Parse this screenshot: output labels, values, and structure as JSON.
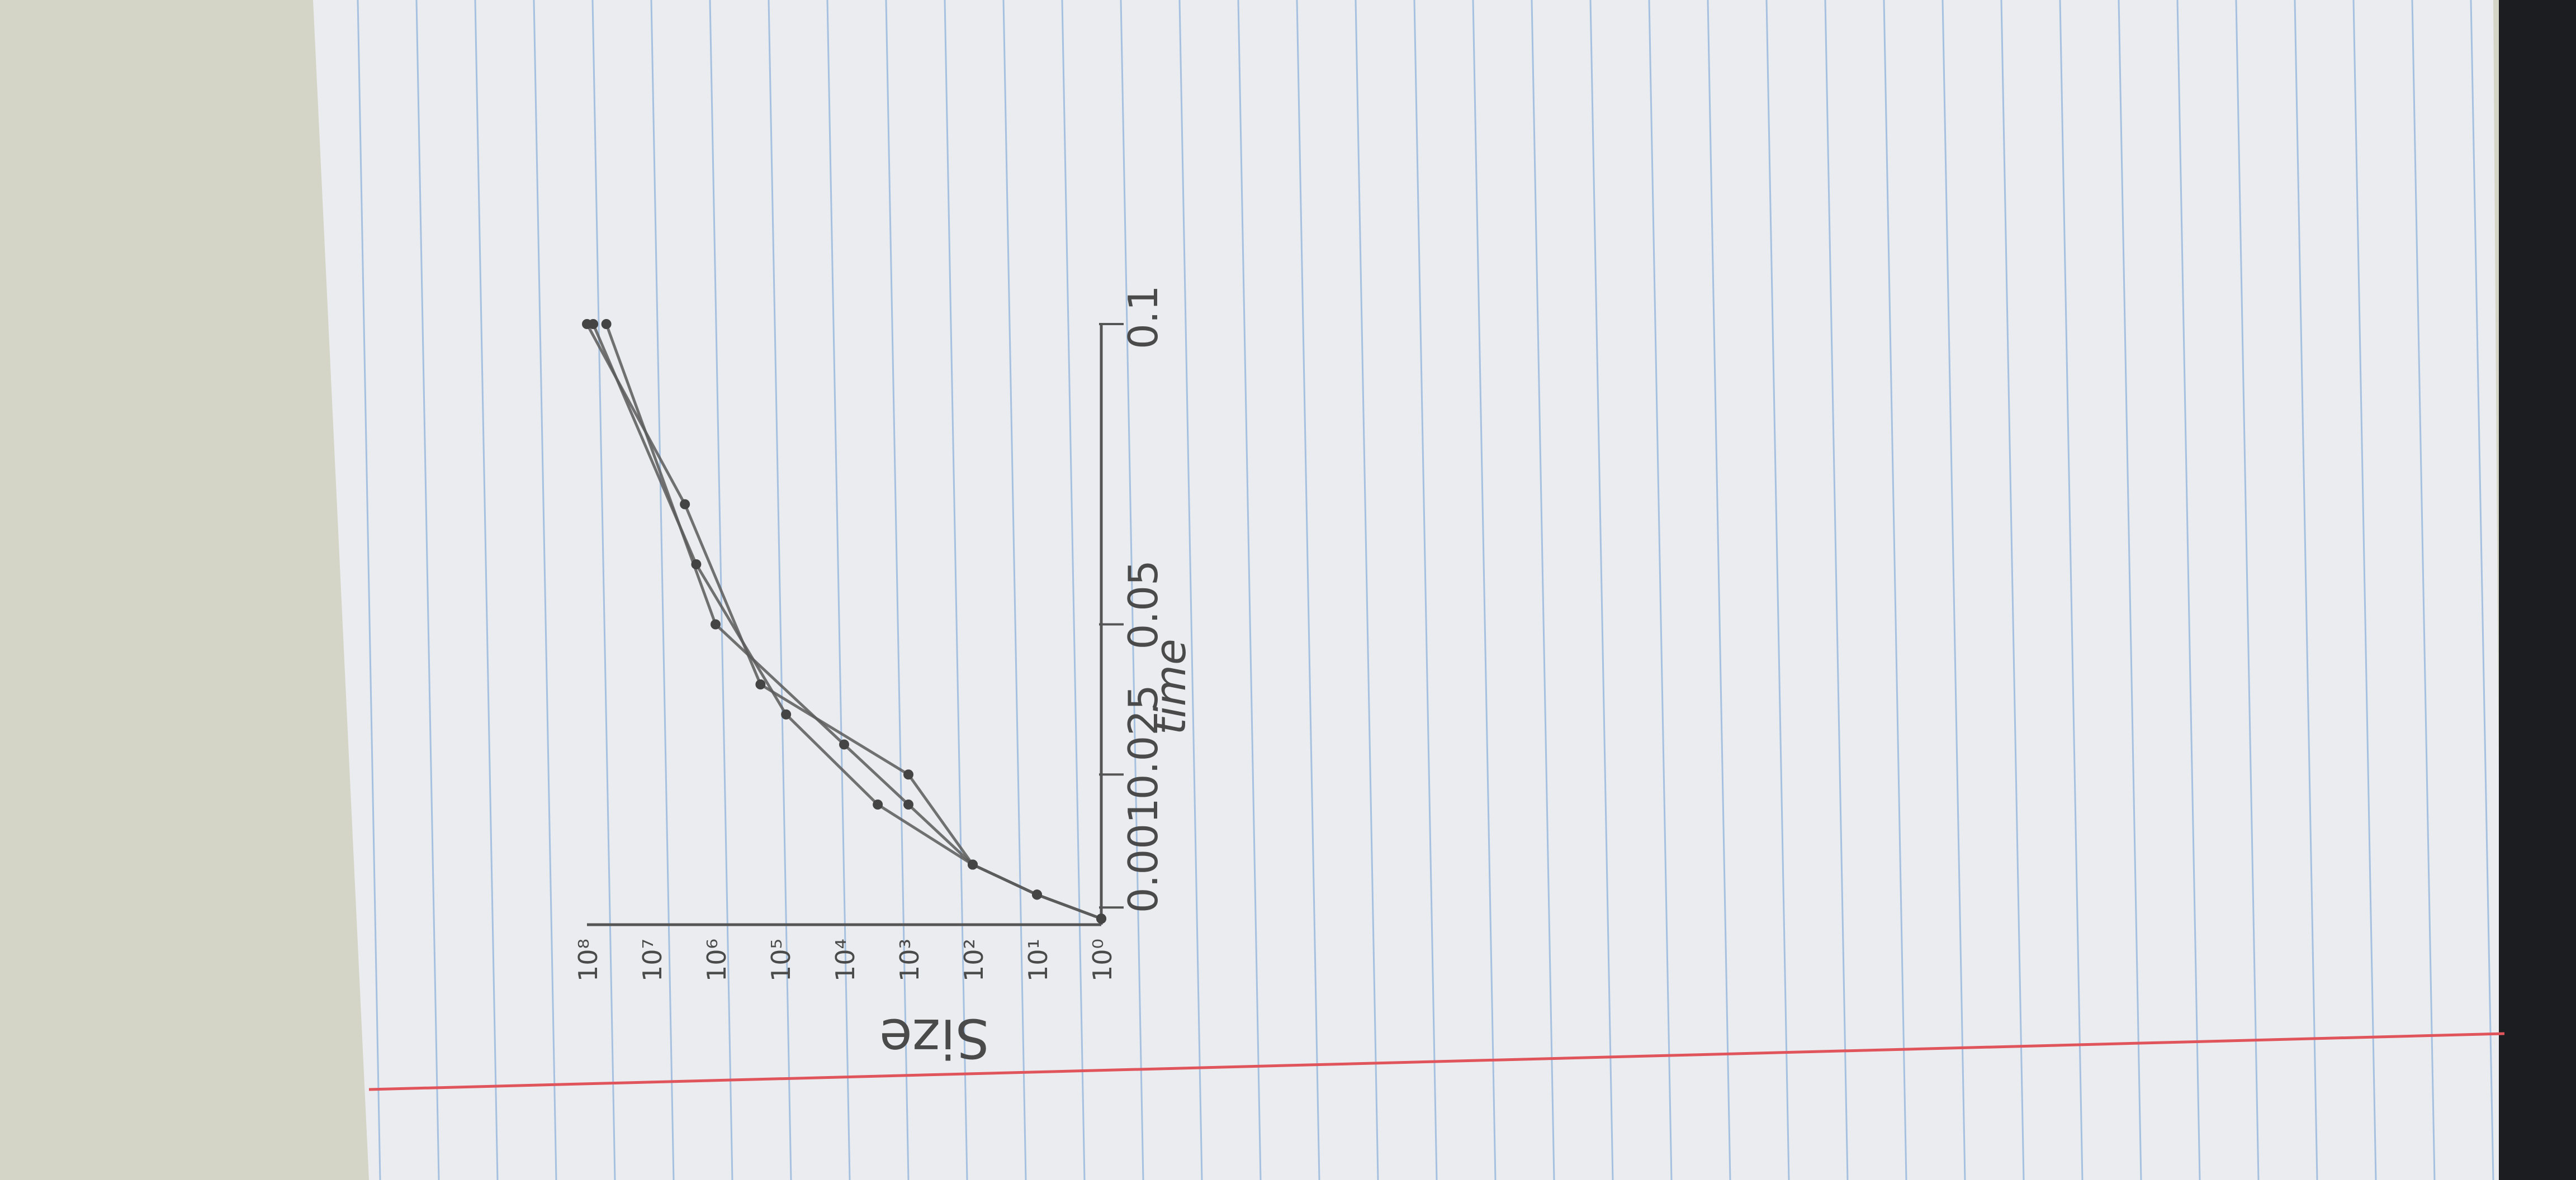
{
  "chart_data": {
    "type": "line",
    "orientation": "rotated-90-ccw",
    "xlabel": "time",
    "ylabel": "Size",
    "x_ticks": [
      "0.001",
      "0.025",
      "0.05",
      "0.1"
    ],
    "y_ticks": [
      "10⁰",
      "10¹",
      "10²",
      "10³",
      "10⁴",
      "10⁵",
      "10⁶",
      "10⁷",
      "10⁸"
    ],
    "y_scale": "log",
    "xlim": [
      0,
      0.1
    ],
    "ylim": [
      1,
      100000000
    ],
    "grid": false,
    "series": [
      {
        "x": [
          0.001,
          0.005,
          0.01,
          0.02,
          0.03,
          0.05,
          0.1
        ],
        "y": [
          1,
          10,
          100,
          1000,
          10000,
          1000000,
          50000000
        ]
      },
      {
        "x": [
          0.001,
          0.005,
          0.01,
          0.02,
          0.035,
          0.06,
          0.1
        ],
        "y": [
          1,
          10,
          100,
          3000,
          80000,
          2000000,
          80000000
        ]
      },
      {
        "x": [
          0.001,
          0.005,
          0.01,
          0.025,
          0.04,
          0.07,
          0.1
        ],
        "y": [
          1,
          10,
          100,
          1000,
          200000,
          3000000,
          100000000
        ]
      }
    ]
  },
  "colors": {
    "pencil": "#5a5a5a",
    "paper": "#ecedf0",
    "rule_line": "#8fb3dc",
    "margin_line": "#e0555b",
    "background": "#d3d4c8"
  }
}
